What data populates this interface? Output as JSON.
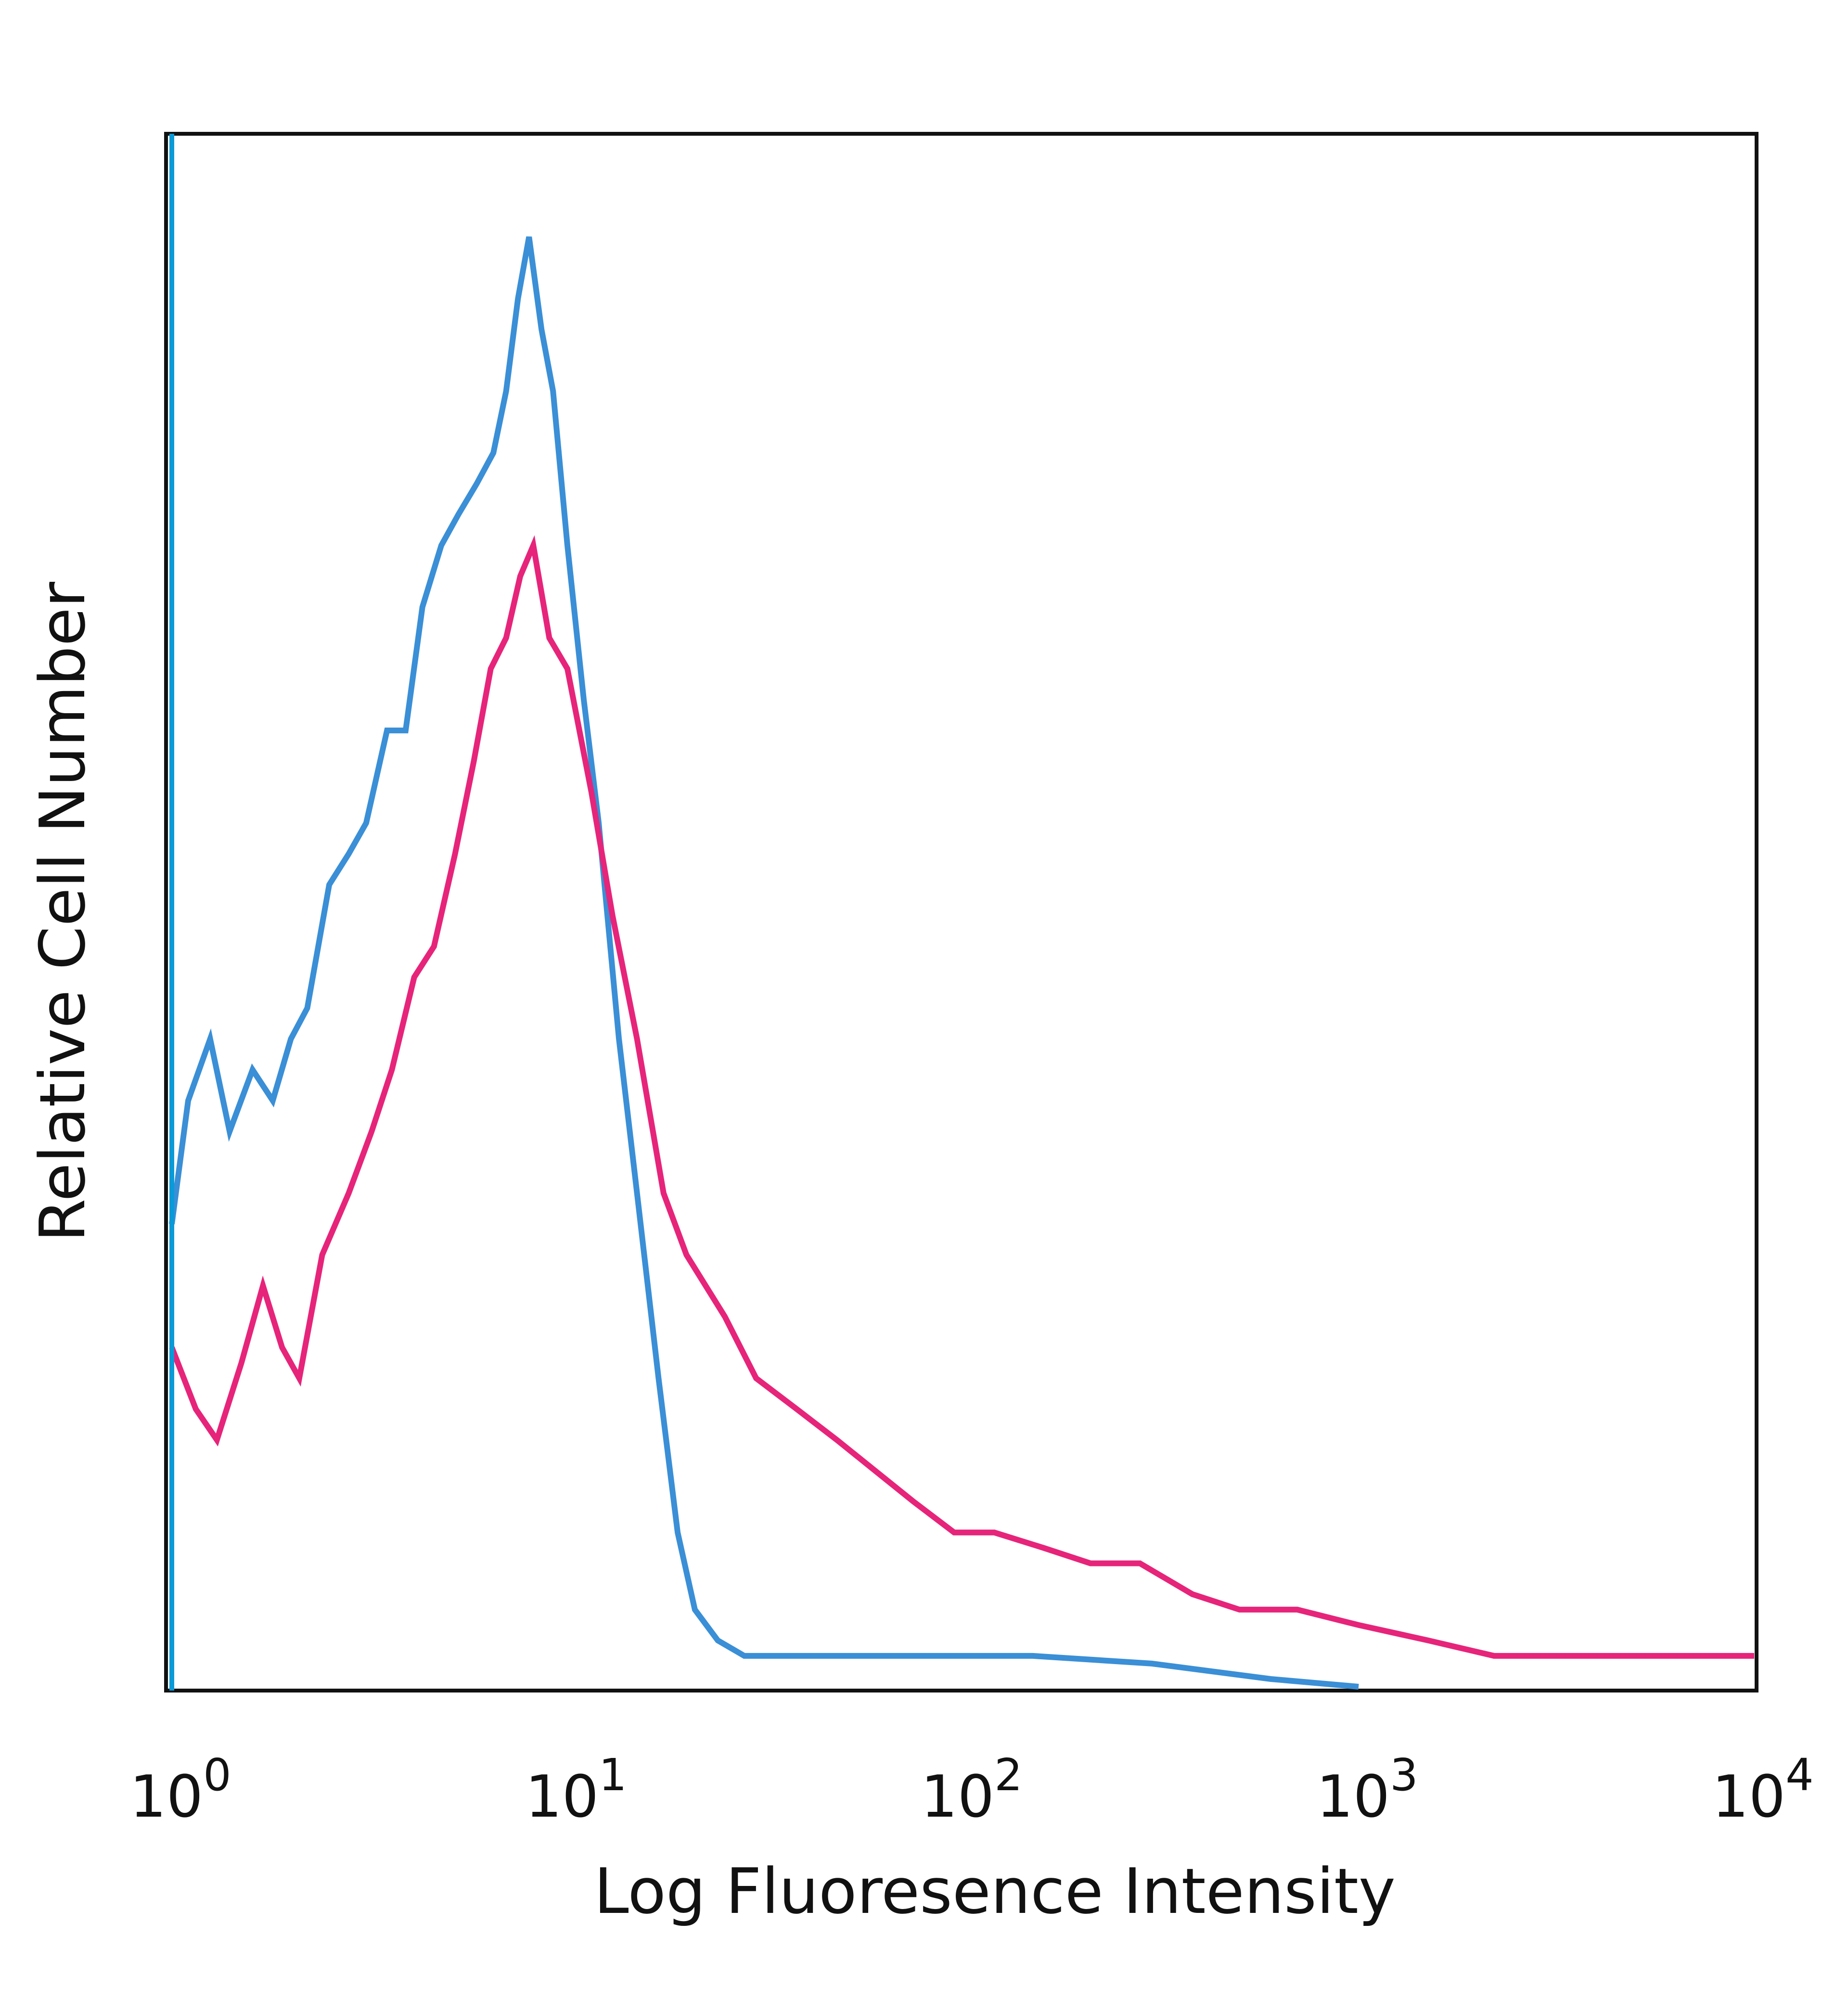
{
  "chart_data": {
    "type": "line",
    "title": "",
    "xlabel": "Log Fluoresence Intensity",
    "ylabel": "Relative Cell Number",
    "x_scale": "log",
    "xlim": [
      1,
      10000
    ],
    "ylim": [
      0,
      100
    ],
    "grid": false,
    "legend": "none",
    "x_ticks": [
      {
        "value": 1,
        "base": "10",
        "exp": "0"
      },
      {
        "value": 10,
        "base": "10",
        "exp": "1"
      },
      {
        "value": 100,
        "base": "10",
        "exp": "2"
      },
      {
        "value": 1000,
        "base": "10",
        "exp": "3"
      },
      {
        "value": 10000,
        "base": "10",
        "exp": "4"
      }
    ],
    "series": [
      {
        "color": "#3a8fd6",
        "points": [
          [
            1.0,
            30
          ],
          [
            1.1,
            38
          ],
          [
            1.25,
            42
          ],
          [
            1.4,
            36
          ],
          [
            1.6,
            40
          ],
          [
            1.8,
            38
          ],
          [
            2.0,
            42
          ],
          [
            2.2,
            44
          ],
          [
            2.5,
            52
          ],
          [
            2.8,
            54
          ],
          [
            3.1,
            56
          ],
          [
            3.5,
            62
          ],
          [
            3.9,
            62
          ],
          [
            4.3,
            70
          ],
          [
            4.8,
            74
          ],
          [
            5.3,
            76
          ],
          [
            5.9,
            78
          ],
          [
            6.5,
            80
          ],
          [
            7.0,
            84
          ],
          [
            7.5,
            90
          ],
          [
            8.0,
            94
          ],
          [
            8.6,
            88
          ],
          [
            9.2,
            84
          ],
          [
            10.0,
            74
          ],
          [
            11.0,
            64
          ],
          [
            12.0,
            56
          ],
          [
            13.5,
            42
          ],
          [
            15.0,
            32
          ],
          [
            17.0,
            20
          ],
          [
            19.0,
            10
          ],
          [
            21.0,
            5
          ],
          [
            24.0,
            3
          ],
          [
            28.0,
            2
          ],
          [
            35.0,
            2
          ],
          [
            50.0,
            2
          ],
          [
            80.0,
            2
          ],
          [
            150.0,
            2
          ],
          [
            300.0,
            1.5
          ],
          [
            600.0,
            0.5
          ],
          [
            1000.0,
            0
          ]
        ]
      },
      {
        "color": "#e6247a",
        "points": [
          [
            1.0,
            22
          ],
          [
            1.15,
            18
          ],
          [
            1.3,
            16
          ],
          [
            1.5,
            21
          ],
          [
            1.7,
            26
          ],
          [
            1.9,
            22
          ],
          [
            2.1,
            20
          ],
          [
            2.4,
            28
          ],
          [
            2.8,
            32
          ],
          [
            3.2,
            36
          ],
          [
            3.6,
            40
          ],
          [
            4.1,
            46
          ],
          [
            4.6,
            48
          ],
          [
            5.2,
            54
          ],
          [
            5.8,
            60
          ],
          [
            6.4,
            66
          ],
          [
            7.0,
            68
          ],
          [
            7.6,
            72
          ],
          [
            8.2,
            74
          ],
          [
            9.0,
            68
          ],
          [
            10.0,
            66
          ],
          [
            11.5,
            58
          ],
          [
            13.0,
            50
          ],
          [
            15.0,
            42
          ],
          [
            17.5,
            32
          ],
          [
            20.0,
            28
          ],
          [
            25.0,
            24
          ],
          [
            30.0,
            20
          ],
          [
            38.0,
            18
          ],
          [
            48.0,
            16
          ],
          [
            60.0,
            14
          ],
          [
            75.0,
            12
          ],
          [
            95.0,
            10
          ],
          [
            120.0,
            10
          ],
          [
            160.0,
            9
          ],
          [
            210.0,
            8
          ],
          [
            280.0,
            8
          ],
          [
            380.0,
            6
          ],
          [
            500.0,
            5
          ],
          [
            700.0,
            5
          ],
          [
            1000.0,
            4
          ],
          [
            1500.0,
            3
          ],
          [
            2200.0,
            2
          ],
          [
            3500.0,
            2
          ],
          [
            6000.0,
            2
          ],
          [
            10000.0,
            2
          ]
        ]
      }
    ]
  }
}
